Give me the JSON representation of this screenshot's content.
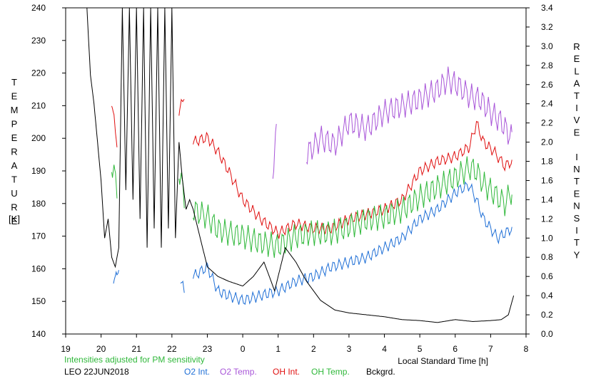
{
  "chart_data": {
    "type": "line",
    "y_left_label": "TEMPERATURE",
    "y_left_unit": "[K]",
    "y_right_label": "RELATIVE INTENSITY",
    "xlabel": "Local Standard Time [h]",
    "x_ticks": [
      "19",
      "20",
      "21",
      "22",
      "23",
      "0",
      "1",
      "2",
      "3",
      "4",
      "5",
      "6",
      "7",
      "8"
    ],
    "xlim": [
      19,
      32
    ],
    "ylim_left": [
      140,
      240
    ],
    "y_left_ticks": [
      "140",
      "150",
      "160",
      "170",
      "180",
      "190",
      "200",
      "210",
      "220",
      "230",
      "240"
    ],
    "ylim_right": [
      0.0,
      3.4
    ],
    "y_right_ticks": [
      "0.0",
      "0.2",
      "0.4",
      "0.6",
      "0.8",
      "1.0",
      "1.2",
      "1.4",
      "1.6",
      "1.8",
      "2.0",
      "2.2",
      "2.4",
      "2.6",
      "2.8",
      "3.0",
      "3.2",
      "3.4"
    ],
    "note": "Intensities adjusted for PM sensitivity",
    "station": "LEO 22JUN2018",
    "grid": false,
    "legend_position": "bottom",
    "series": [
      {
        "name": "O2 Int.",
        "color": "#1f6fd6",
        "axis": "right",
        "segments": [
          {
            "x": [
              20.35,
              20.45,
              20.5
            ],
            "y": [
              0.55,
              0.6,
              0.7
            ]
          },
          {
            "x": [
              22.25,
              22.35
            ],
            "y": [
              0.55,
              0.45
            ]
          },
          {
            "x": [
              22.6,
              23.0,
              23.3,
              23.6,
              24.0,
              24.5,
              25.0,
              25.5,
              26.0,
              26.5,
              27.0,
              27.5,
              28.0,
              28.5,
              29.0,
              29.5,
              29.8,
              30.1,
              30.4,
              30.6,
              30.8,
              31.0,
              31.2,
              31.4,
              31.6
            ],
            "y": [
              0.6,
              0.7,
              0.45,
              0.4,
              0.35,
              0.4,
              0.45,
              0.55,
              0.6,
              0.7,
              0.75,
              0.8,
              0.9,
              1.0,
              1.2,
              1.3,
              1.4,
              1.5,
              1.55,
              1.4,
              1.2,
              1.1,
              1.0,
              1.05,
              1.1
            ]
          }
        ]
      },
      {
        "name": "O2 Temp.",
        "color": "#a855d8",
        "axis": "left",
        "segments": [
          {
            "x": [
              24.85,
              24.95
            ],
            "y": [
              190,
              202
            ]
          },
          {
            "x": [
              25.8,
              26.2,
              26.6,
              27.0,
              27.5,
              28.0,
              28.5,
              29.0,
              29.5,
              29.8,
              30.1,
              30.4,
              30.7,
              31.0,
              31.3,
              31.6
            ],
            "y": [
              195,
              200,
              198,
              205,
              203,
              208,
              210,
              212,
              215,
              218,
              216,
              213,
              212,
              208,
              205,
              200
            ]
          }
        ]
      },
      {
        "name": "OH Int.",
        "color": "#e01010",
        "axis": "right",
        "segments": [
          {
            "x": [
              20.3,
              20.45
            ],
            "y": [
              2.4,
              2.0
            ]
          },
          {
            "x": [
              22.2,
              22.35
            ],
            "y": [
              2.3,
              2.5
            ]
          },
          {
            "x": [
              22.6,
              23.0,
              23.3,
              23.6,
              24.0,
              24.5,
              25.0,
              25.5,
              26.0,
              26.5,
              27.0,
              27.5,
              28.0,
              28.5,
              29.0,
              29.5,
              30.0,
              30.4,
              30.6,
              30.8,
              31.1,
              31.4,
              31.6
            ],
            "y": [
              2.0,
              2.05,
              1.9,
              1.7,
              1.4,
              1.2,
              1.05,
              1.15,
              1.1,
              1.1,
              1.2,
              1.25,
              1.3,
              1.4,
              1.7,
              1.8,
              1.85,
              1.95,
              2.2,
              2.0,
              1.9,
              1.75,
              1.8
            ]
          }
        ]
      },
      {
        "name": "OH Temp.",
        "color": "#2fb83a",
        "axis": "left",
        "segments": [
          {
            "x": [
              20.3,
              20.45
            ],
            "y": [
              192,
              185
            ]
          },
          {
            "x": [
              22.2,
              22.35
            ],
            "y": [
              190,
              182
            ]
          },
          {
            "x": [
              22.6,
              23.0,
              23.3,
              23.6,
              24.0,
              24.5,
              25.0,
              25.5,
              26.0,
              26.5,
              27.0,
              27.5,
              28.0,
              28.5,
              29.0,
              29.5,
              30.0,
              30.4,
              30.6,
              30.8,
              31.1,
              31.4,
              31.6
            ],
            "y": [
              178,
              176,
              172,
              171,
              170,
              168,
              167,
              170,
              171,
              171,
              173,
              175,
              176,
              178,
              182,
              185,
              188,
              191,
              190,
              186,
              183,
              180,
              184
            ]
          }
        ]
      },
      {
        "name": "Bckgrd.",
        "color": "#000000",
        "axis": "right",
        "segments": [
          {
            "x": [
              19.6,
              19.7,
              19.8,
              19.9,
              20.0,
              20.1,
              20.2,
              20.3,
              20.4,
              20.5,
              20.6,
              20.7,
              20.8,
              20.9,
              21.0,
              21.1,
              21.2,
              21.3,
              21.4,
              21.5,
              21.6,
              21.7,
              21.8,
              21.9,
              22.0,
              22.1,
              22.2,
              22.3,
              22.4,
              22.5,
              22.6,
              22.8,
              23.0,
              23.3,
              23.6,
              24.0,
              24.3,
              24.6,
              24.9,
              25.2,
              25.5,
              25.8,
              26.2,
              26.6,
              27.0,
              27.5,
              28.0,
              28.5,
              29.0,
              29.5,
              30.0,
              30.5,
              31.0,
              31.3,
              31.5,
              31.65
            ],
            "y": [
              3.4,
              2.7,
              2.4,
              2.0,
              1.6,
              1.0,
              1.2,
              0.8,
              0.7,
              0.9,
              3.4,
              1.5,
              3.4,
              1.4,
              3.4,
              1.2,
              3.4,
              0.9,
              3.4,
              1.1,
              3.4,
              0.9,
              3.4,
              1.1,
              3.4,
              1.0,
              2.0,
              1.6,
              1.3,
              1.4,
              1.3,
              1.0,
              0.7,
              0.6,
              0.55,
              0.5,
              0.6,
              0.75,
              0.45,
              0.9,
              0.75,
              0.55,
              0.35,
              0.25,
              0.22,
              0.2,
              0.18,
              0.15,
              0.14,
              0.12,
              0.15,
              0.13,
              0.14,
              0.15,
              0.2,
              0.4
            ]
          }
        ]
      }
    ]
  }
}
